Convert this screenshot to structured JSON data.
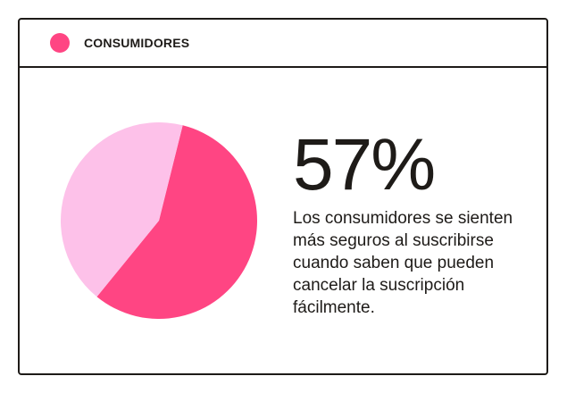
{
  "chart_data": {
    "type": "pie",
    "categories": [
      "CONSUMIDORES",
      null
    ],
    "values": [
      57,
      43
    ],
    "value_labels": [
      "57%",
      null
    ],
    "colors": [
      "#ff4583",
      "#fdc1e9"
    ],
    "description": "Los consumidores se sienten más seguros al suscribirse cuando saben que pueden cancelar la suscripción fácilmente."
  }
}
